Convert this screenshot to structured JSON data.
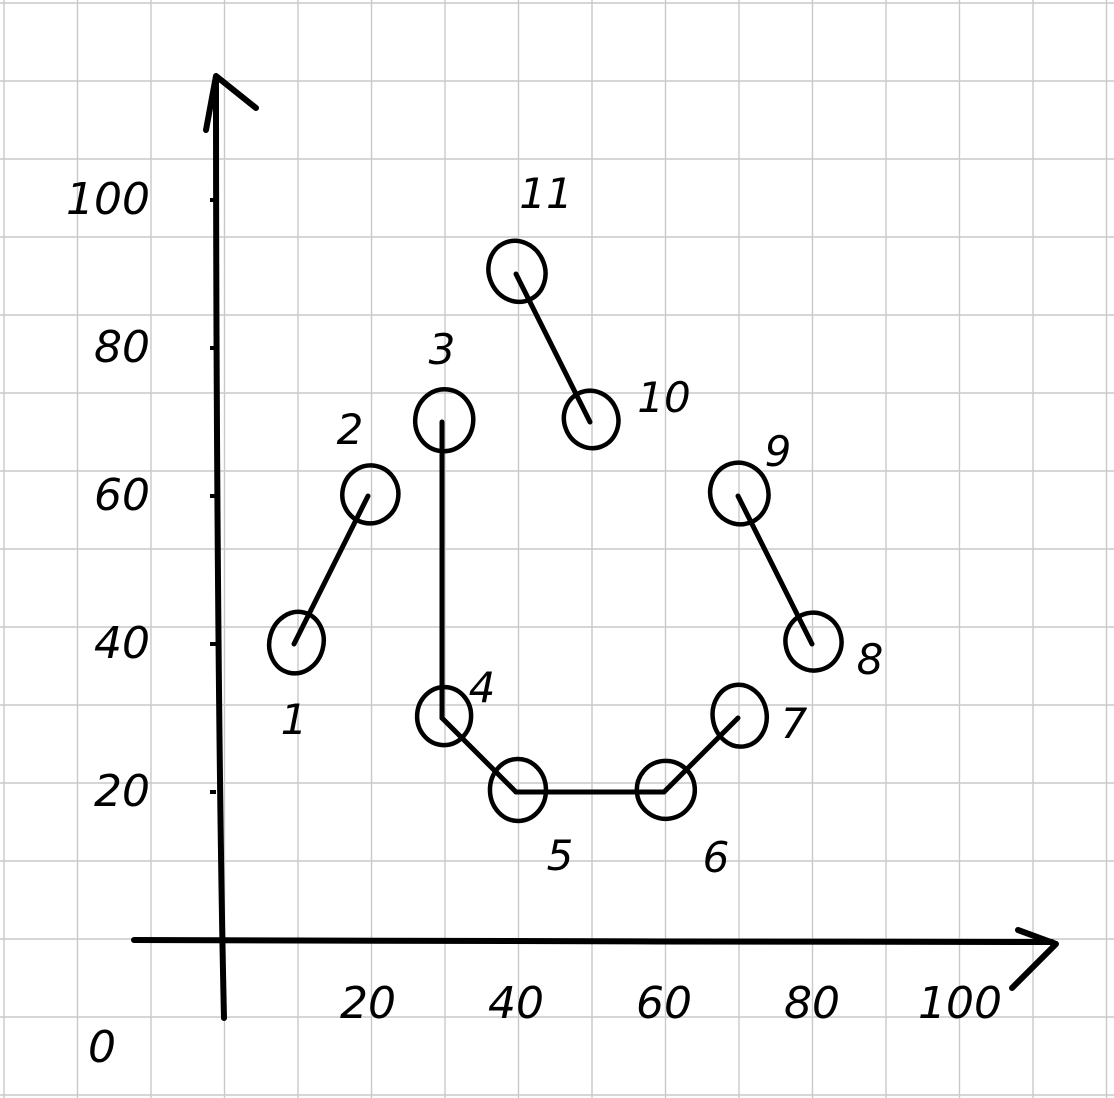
{
  "chart_data": {
    "type": "line",
    "title": "",
    "xlabel": "",
    "ylabel": "",
    "origin_label": "0",
    "xlim": [
      0,
      110
    ],
    "ylim": [
      0,
      110
    ],
    "x_ticks": [
      {
        "value": 20,
        "label": "20"
      },
      {
        "value": 40,
        "label": "40"
      },
      {
        "value": 60,
        "label": "60"
      },
      {
        "value": 80,
        "label": "80"
      },
      {
        "value": 100,
        "label": "100"
      }
    ],
    "y_ticks": [
      {
        "value": 20,
        "label": "20"
      },
      {
        "value": 40,
        "label": "40"
      },
      {
        "value": 60,
        "label": "60"
      },
      {
        "value": 80,
        "label": "80"
      },
      {
        "value": 100,
        "label": "100"
      }
    ],
    "points": [
      {
        "label": "1",
        "x": 10,
        "y": 40
      },
      {
        "label": "2",
        "x": 20,
        "y": 60
      },
      {
        "label": "3",
        "x": 30,
        "y": 70
      },
      {
        "label": "4",
        "x": 30,
        "y": 30
      },
      {
        "label": "5",
        "x": 40,
        "y": 20
      },
      {
        "label": "6",
        "x": 60,
        "y": 20
      },
      {
        "label": "7",
        "x": 70,
        "y": 30
      },
      {
        "label": "8",
        "x": 80,
        "y": 40
      },
      {
        "label": "9",
        "x": 70,
        "y": 60
      },
      {
        "label": "10",
        "x": 50,
        "y": 70
      },
      {
        "label": "11",
        "x": 40,
        "y": 90
      }
    ],
    "segments": [
      [
        "1",
        "2"
      ],
      [
        "3",
        "4"
      ],
      [
        "4",
        "5"
      ],
      [
        "5",
        "6"
      ],
      [
        "6",
        "7"
      ],
      [
        "8",
        "9"
      ],
      [
        "10",
        "11"
      ]
    ],
    "grid": true
  }
}
